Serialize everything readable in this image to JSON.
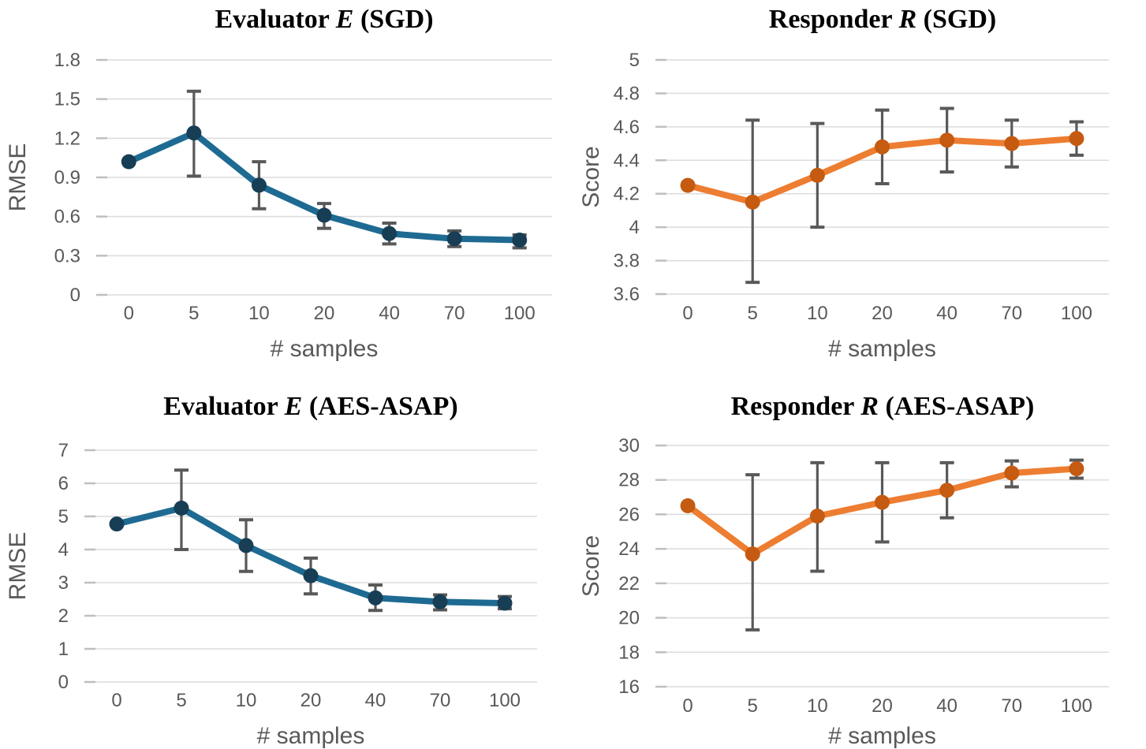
{
  "page": {
    "background": "#ffffff",
    "text_color": "#595959",
    "gridline_color": "#dcdcdc",
    "tick_mark_color": "#bfbfbf",
    "error_bar_color": "#595959"
  },
  "chart_data": [
    {
      "type": "line",
      "title": "Evaluator E (SGD)",
      "title_parts": {
        "prefix": "Evaluator ",
        "symbol": "E",
        "suffix": " (SGD)"
      },
      "xlabel": "# samples",
      "ylabel": "RMSE",
      "categories": [
        "0",
        "5",
        "10",
        "20",
        "40",
        "70",
        "100"
      ],
      "values": [
        1.02,
        1.24,
        0.84,
        0.61,
        0.47,
        0.43,
        0.42
      ],
      "error_low": [
        null,
        0.91,
        0.66,
        0.51,
        0.39,
        0.37,
        0.36
      ],
      "error_high": [
        null,
        1.56,
        1.02,
        0.7,
        0.55,
        0.49,
        0.46
      ],
      "yticks": [
        0,
        0.3,
        0.6,
        0.9,
        1.2,
        1.5,
        1.8
      ],
      "ytick_labels": [
        "0",
        "0.3",
        "0.6",
        "0.9",
        "1.2",
        "1.5",
        "1.8"
      ],
      "ylim": [
        0,
        1.8
      ],
      "grid": true,
      "legend": "none",
      "line_color": "#1e6a92",
      "marker_color": "#173e55"
    },
    {
      "type": "line",
      "title": "Responder R (SGD)",
      "title_parts": {
        "prefix": "Responder ",
        "symbol": "R",
        "suffix": " (SGD)"
      },
      "xlabel": "# samples",
      "ylabel": "Score",
      "categories": [
        "0",
        "5",
        "10",
        "20",
        "40",
        "70",
        "100"
      ],
      "values": [
        4.25,
        4.15,
        4.31,
        4.48,
        4.52,
        4.5,
        4.53
      ],
      "error_low": [
        null,
        3.67,
        4.0,
        4.26,
        4.33,
        4.36,
        4.43
      ],
      "error_high": [
        null,
        4.64,
        4.62,
        4.7,
        4.71,
        4.64,
        4.63
      ],
      "yticks": [
        3.6,
        3.8,
        4,
        4.2,
        4.4,
        4.6,
        4.8,
        5
      ],
      "ytick_labels": [
        "3.6",
        "3.8",
        "4",
        "4.2",
        "4.4",
        "4.6",
        "4.8",
        "5"
      ],
      "ylim": [
        3.6,
        5
      ],
      "grid": true,
      "legend": "none",
      "line_color": "#ed7d31",
      "marker_color": "#c55a11"
    },
    {
      "type": "line",
      "title": "Evaluator E (AES-ASAP)",
      "title_parts": {
        "prefix": "Evaluator ",
        "symbol": "E",
        "suffix": " (AES-ASAP)"
      },
      "xlabel": "# samples",
      "ylabel": "RMSE",
      "categories": [
        "0",
        "5",
        "10",
        "20",
        "40",
        "70",
        "100"
      ],
      "values": [
        4.77,
        5.25,
        4.12,
        3.21,
        2.54,
        2.42,
        2.38
      ],
      "error_low": [
        null,
        4.0,
        3.34,
        2.66,
        2.16,
        2.18,
        2.21
      ],
      "error_high": [
        null,
        6.4,
        4.9,
        3.74,
        2.93,
        2.63,
        2.58
      ],
      "yticks": [
        0,
        1,
        2,
        3,
        4,
        5,
        6,
        7
      ],
      "ytick_labels": [
        "0",
        "1",
        "2",
        "3",
        "4",
        "5",
        "6",
        "7"
      ],
      "ylim": [
        0,
        7
      ],
      "grid": true,
      "legend": "none",
      "line_color": "#1e6a92",
      "marker_color": "#173e55"
    },
    {
      "type": "line",
      "title": "Responder R (AES-ASAP)",
      "title_parts": {
        "prefix": "Responder ",
        "symbol": "R",
        "suffix": " (AES-ASAP)"
      },
      "xlabel": "# samples",
      "ylabel": "Score",
      "categories": [
        "0",
        "5",
        "10",
        "20",
        "40",
        "70",
        "100"
      ],
      "values": [
        26.5,
        23.7,
        25.9,
        26.7,
        27.4,
        28.4,
        28.65
      ],
      "error_low": [
        null,
        19.3,
        22.7,
        24.4,
        25.8,
        27.6,
        28.1
      ],
      "error_high": [
        null,
        28.3,
        29.0,
        29.0,
        29.0,
        29.1,
        29.15
      ],
      "yticks": [
        16,
        18,
        20,
        22,
        24,
        26,
        28,
        30
      ],
      "ytick_labels": [
        "16",
        "18",
        "20",
        "22",
        "24",
        "26",
        "28",
        "30"
      ],
      "ylim": [
        16,
        30
      ],
      "grid": true,
      "legend": "none",
      "line_color": "#ed7d31",
      "marker_color": "#c55a11"
    }
  ]
}
